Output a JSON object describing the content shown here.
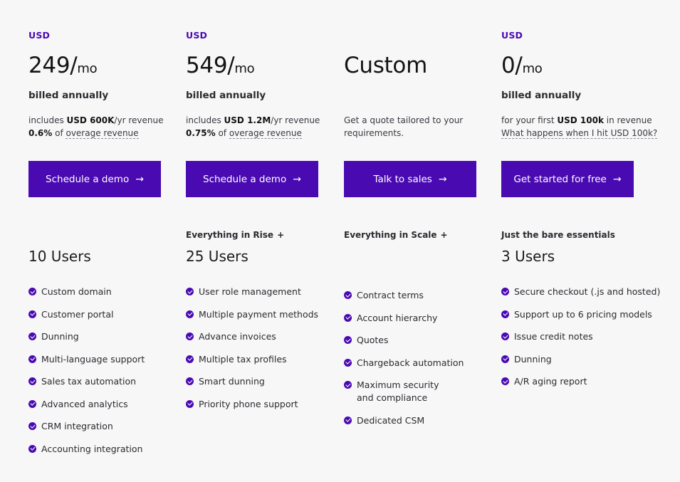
{
  "plans": [
    {
      "currency": "USD",
      "amount": "249/",
      "unit": "mo",
      "billed": "billed annually",
      "desc_pre": "includes ",
      "desc_bold": "USD 600K",
      "desc_post": "/yr revenue",
      "overage_pct": "0.6%",
      "overage_of": " of ",
      "overage_link": "overage revenue",
      "cta": "Schedule a demo",
      "previous": "",
      "users": "10 Users",
      "features": [
        "Custom domain",
        "Customer portal",
        "Dunning",
        "Multi-language support",
        "Sales tax automation",
        "Advanced analytics",
        "CRM integration",
        "Accounting integration"
      ]
    },
    {
      "currency": "USD",
      "amount": "549/",
      "unit": "mo",
      "billed": "billed annually",
      "desc_pre": "includes ",
      "desc_bold": "USD 1.2M",
      "desc_post": "/yr revenue",
      "overage_pct": "0.75%",
      "overage_of": " of ",
      "overage_link": "overage revenue",
      "cta": "Schedule a demo",
      "previous": "Everything in Rise",
      "users": "25 Users",
      "features": [
        "User role management",
        "Multiple payment methods",
        "Advance invoices",
        "Multiple tax profiles",
        "Smart dunning",
        "Priority phone support"
      ]
    },
    {
      "currency": "",
      "amount": "Custom",
      "billed": "",
      "desc_line1": "Get a quote tailored to your",
      "desc_line2": "requirements.",
      "cta": "Talk to sales",
      "previous": "Everything in Scale",
      "users": "",
      "features": [
        "Contract terms",
        "Account hierarchy",
        "Quotes",
        "Chargeback automation",
        "Maximum security and compliance",
        "Dedicated CSM"
      ]
    },
    {
      "currency": "USD",
      "amount": "0/",
      "unit": "mo",
      "billed": "billed annually",
      "desc_pre": "for your first ",
      "desc_bold": "USD 100k",
      "desc_post": " in revenue",
      "faq_link": "What happens when I hit USD 100k?",
      "cta": "Get started for free",
      "previous": "Just the bare essentials",
      "users": "3 Users",
      "features": [
        "Secure checkout (.js and hosted)",
        "Support up to 6 pricing models",
        "Issue credit notes",
        "Dunning",
        "A/R aging report"
      ]
    }
  ],
  "plus_symbol": "+",
  "arrow_symbol": "→",
  "colors": {
    "accent": "#4a0ab2",
    "background": "#f7f7f8",
    "text": "#1c1c1f"
  },
  "icons": {
    "feature": "check-circle-icon",
    "cta": "arrow-right-icon"
  }
}
